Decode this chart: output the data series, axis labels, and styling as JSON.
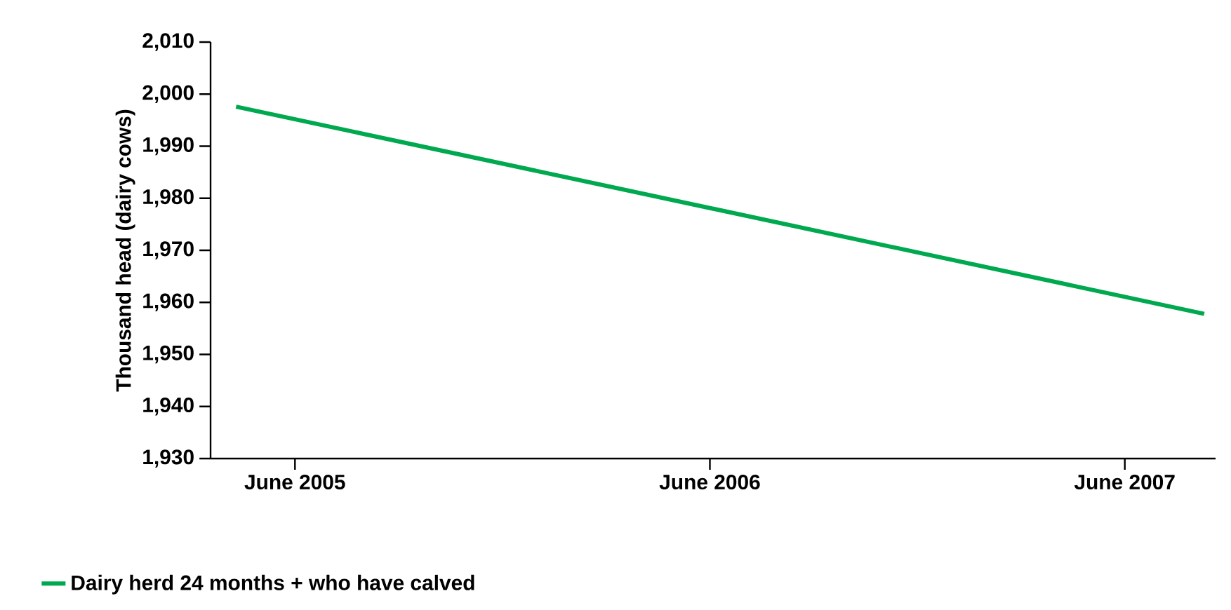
{
  "chart_data": {
    "type": "line",
    "ylabel": "Thousand head (dairy cows)",
    "xlim": [
      "2005-03-18",
      "2007-08-20"
    ],
    "xticks": [
      {
        "value": "2005-06",
        "label": "June 2005"
      },
      {
        "value": "2006-06",
        "label": "June 2006"
      },
      {
        "value": "2007-06",
        "label": "June 2007"
      }
    ],
    "ylim": [
      1930,
      2010
    ],
    "yticks": [
      {
        "value": 1930,
        "label": "1,930"
      },
      {
        "value": 1940,
        "label": "1,940"
      },
      {
        "value": 1950,
        "label": "1,950"
      },
      {
        "value": 1960,
        "label": "1,960"
      },
      {
        "value": 1970,
        "label": "1,970"
      },
      {
        "value": 1980,
        "label": "1,980"
      },
      {
        "value": 1990,
        "label": "1,990"
      },
      {
        "value": 2000,
        "label": "2,000"
      },
      {
        "value": 2010,
        "label": "2,010"
      }
    ],
    "series": [
      {
        "name": "Dairy herd 24 months + who have calved",
        "color": "#00a94f",
        "x": [
          "2005-04-10",
          "2007-08-10"
        ],
        "values": [
          1997.6,
          1957.8
        ]
      }
    ],
    "grid": false,
    "legend": "bottom left",
    "marker": "none",
    "line_style": "solid"
  }
}
